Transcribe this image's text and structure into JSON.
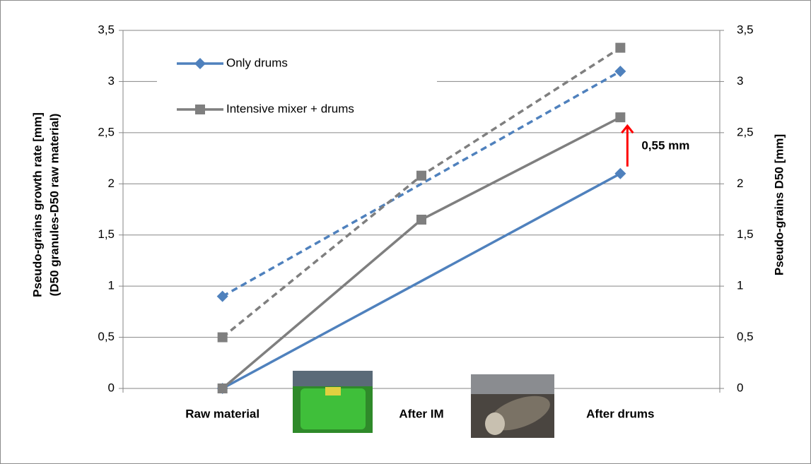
{
  "chart_data": {
    "type": "line",
    "categories": [
      "Raw material",
      "After IM",
      "After drums"
    ],
    "ylabel": [
      "Pseudo-grains growth rate [mm]",
      "(D50 granules-D50 raw material)"
    ],
    "y2label": "Pseudo-grains D50 [mm]",
    "ylim": [
      0,
      3.5
    ],
    "yticks": [
      0,
      {
        "value": 0.5,
        "label": "0,5"
      },
      1,
      {
        "value": 1.5,
        "label": "1,5"
      },
      2,
      {
        "value": 2.5,
        "label": "2,5"
      },
      3,
      {
        "value": 3.5,
        "label": "3,5"
      }
    ],
    "y2lim": [
      0,
      3.5
    ],
    "y2ticks": [
      0,
      {
        "value": 0.5,
        "label": "0,5"
      },
      1,
      {
        "value": 1.5,
        "label": "1,5"
      },
      2,
      {
        "value": 2.5,
        "label": "2,5"
      },
      3,
      {
        "value": 3.5,
        "label": "3,5"
      }
    ],
    "grid": true,
    "legend": "upper left",
    "series": [
      {
        "name": "Only drums",
        "color": "#4f81bd",
        "marker": "diamond",
        "dashed": false,
        "in_legend": true,
        "markers": [
          true,
          false,
          true
        ],
        "values": [
          0,
          1.05,
          2.1
        ]
      },
      {
        "name": "Intensive mixer + drums",
        "color": "#7f7f7f",
        "marker": "square",
        "dashed": false,
        "in_legend": true,
        "markers": [
          true,
          true,
          true
        ],
        "values": [
          0,
          1.65,
          2.65
        ]
      },
      {
        "name": "Only drums",
        "color": "#4f81bd",
        "marker": "diamond",
        "dashed": true,
        "in_legend": false,
        "axis": "y2",
        "markers": [
          true,
          false,
          true
        ],
        "values": [
          0.9,
          2.0,
          3.1
        ]
      },
      {
        "name": "Intensive mixer + drums",
        "color": "#7f7f7f",
        "marker": "square",
        "dashed": true,
        "in_legend": false,
        "axis": "y2",
        "markers": [
          true,
          true,
          true
        ],
        "values": [
          0.5,
          2.08,
          3.33
        ]
      }
    ],
    "annotation": {
      "text": "0,55 mm",
      "color": "#ff0000"
    }
  }
}
